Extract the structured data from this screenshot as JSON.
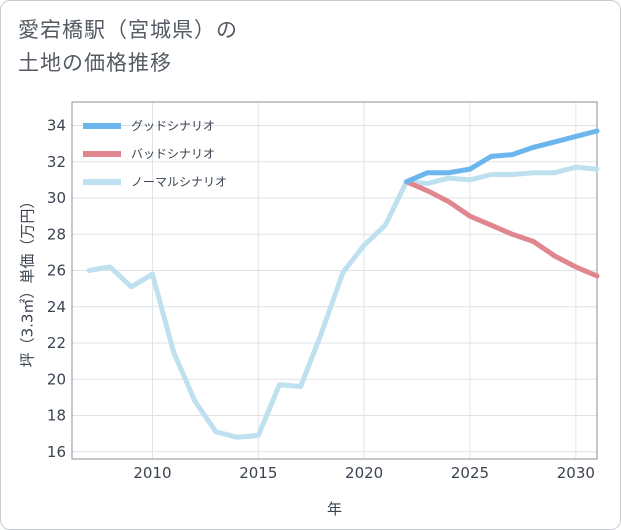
{
  "chart_data": {
    "type": "line",
    "title": "愛宕橋駅（宮城県）の\n土地の価格推移",
    "xlabel": "年",
    "ylabel": "坪（3.3㎡）単価（万円）",
    "xlim": [
      2006.2,
      2031
    ],
    "ylim": [
      15.6,
      35.3
    ],
    "xticks": [
      2010,
      2015,
      2020,
      2025,
      2030
    ],
    "yticks": [
      16,
      18,
      20,
      22,
      24,
      26,
      28,
      30,
      32,
      34
    ],
    "grid": true,
    "legend_position": "top-left",
    "series": [
      {
        "name": "グッドシナリオ",
        "color": "#6cb6ee",
        "x": [
          2022,
          2023,
          2024,
          2025,
          2026,
          2027,
          2028,
          2029,
          2030,
          2031
        ],
        "values": [
          30.9,
          31.4,
          31.4,
          31.6,
          32.3,
          32.4,
          32.8,
          33.1,
          33.4,
          33.7
        ]
      },
      {
        "name": "バッドシナリオ",
        "color": "#e0868f",
        "x": [
          2022,
          2023,
          2024,
          2025,
          2026,
          2027,
          2028,
          2029,
          2030,
          2031
        ],
        "values": [
          30.9,
          30.4,
          29.8,
          29.0,
          28.5,
          28.0,
          27.6,
          26.8,
          26.2,
          25.7
        ]
      },
      {
        "name": "ノーマルシナリオ",
        "color": "#bfe0ef",
        "x": [
          2007,
          2008,
          2009,
          2010,
          2011,
          2012,
          2013,
          2014,
          2015,
          2016,
          2017,
          2018,
          2019,
          2020,
          2021,
          2022,
          2023,
          2024,
          2025,
          2026,
          2027,
          2028,
          2029,
          2030,
          2031
        ],
        "values": [
          26.0,
          26.2,
          25.1,
          25.8,
          21.5,
          18.8,
          17.1,
          16.8,
          16.9,
          19.7,
          19.6,
          22.6,
          25.9,
          27.4,
          28.5,
          30.9,
          30.8,
          31.1,
          31.0,
          31.3,
          31.3,
          31.4,
          31.4,
          31.7,
          31.6
        ]
      }
    ]
  }
}
